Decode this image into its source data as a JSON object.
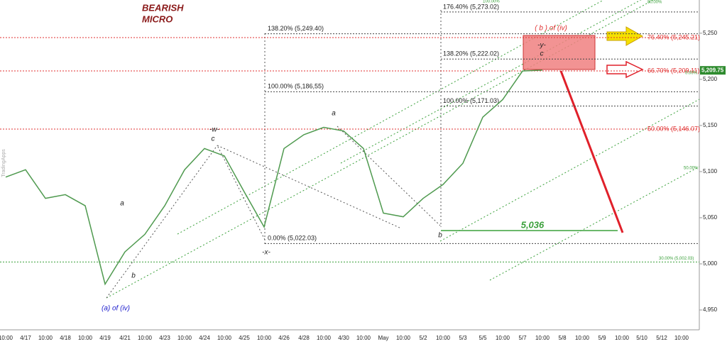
{
  "chart_data": {
    "type": "line",
    "title": "BEARISH",
    "subtitle": "MICRO",
    "watermark": "TradingApps",
    "categories": [
      "10:00",
      "4/17",
      "10:00",
      "4/18",
      "10:00",
      "4/19",
      "4/21",
      "10:00",
      "4/23",
      "10:00",
      "4/24",
      "10:00",
      "4/25",
      "10:00",
      "4/26",
      "4/28",
      "10:00",
      "4/30",
      "10:00",
      "May",
      "10:00",
      "5/2",
      "10:00",
      "5/3",
      "5/5",
      "10:00",
      "5/7",
      "10:00",
      "5/8",
      "10:00",
      "5/9",
      "10:00",
      "5/10",
      "5/12",
      "10:00"
    ],
    "values": [
      5094,
      5102,
      5071,
      5075,
      5063,
      4978,
      5013,
      5032,
      5063,
      5102,
      5125,
      5117,
      5078,
      5040,
      5125,
      5140,
      5148,
      5144,
      5125,
      5055,
      5051,
      5071,
      5086,
      5109,
      5159,
      5178,
      5209,
      5210,
      null,
      null,
      null,
      null,
      null,
      null,
      null
    ],
    "color": "#4f9a4f",
    "ylim": [
      4928.5,
      5286
    ],
    "yticks": [
      {
        "value": 4950,
        "label": "4,950"
      },
      {
        "value": 5000,
        "label": "5,000"
      },
      {
        "value": 5050,
        "label": "5,050"
      },
      {
        "value": 5100,
        "label": "5,100"
      },
      {
        "value": 5150,
        "label": "5,150"
      },
      {
        "value": 5200,
        "label": "5,200"
      },
      {
        "value": 5250,
        "label": "5,250"
      }
    ],
    "last_price": {
      "value": 5209.75,
      "label": "5,209.75"
    },
    "fib_a": [
      {
        "value": 5249.4,
        "label": "138.20% (5,249.40)"
      },
      {
        "value": 5186.55,
        "label": "100.00% (5,186,55)"
      },
      {
        "value": 5022.03,
        "label": "0.00% (5,022.03)"
      }
    ],
    "fib_b": [
      {
        "value": 5273.02,
        "label": "176.40% (5,273.02)"
      },
      {
        "value": 5222.02,
        "label": "138.20% (5,222.02)"
      },
      {
        "value": 5171.03,
        "label": "100.00% (5,171.03)"
      }
    ],
    "fib_red": [
      {
        "value": 5245.21,
        "label": "76.40% (5,245.21)"
      },
      {
        "value": 5209.11,
        "label": "66.70% (5,209.11)"
      },
      {
        "value": 5146.07,
        "label": "50.00% (5,146.07)"
      }
    ],
    "fib_green": {
      "value": 5002.03,
      "label": "30.00% (5,002.03)"
    },
    "target": {
      "value": 5036,
      "label": "5,036"
    },
    "channel_labels": [
      "100.00%",
      "80.00%",
      "0.00%",
      "50.00%"
    ],
    "wave_labels": [
      "a",
      "b",
      "-w-",
      "c",
      "-x-",
      "a",
      "b",
      "-y-",
      "c",
      "( b ) of (iv)",
      "(a) of (iv)"
    ]
  }
}
